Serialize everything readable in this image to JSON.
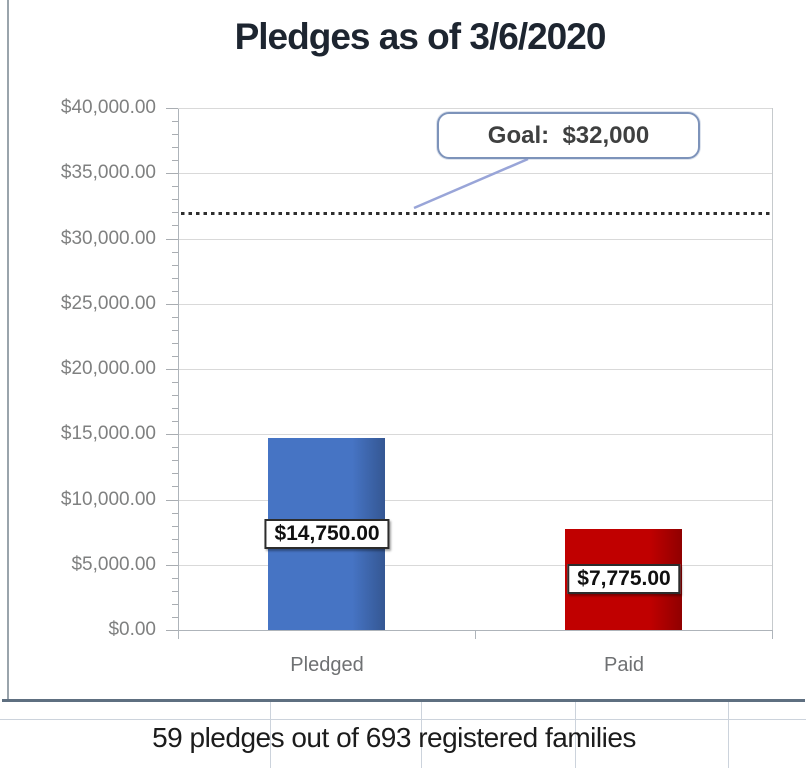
{
  "chart_data": {
    "type": "bar",
    "title": "Pledges as of 3/6/2020",
    "categories": [
      "Pledged",
      "Paid"
    ],
    "values": [
      14750,
      7775
    ],
    "data_labels": [
      "$14,750.00",
      "$7,775.00"
    ],
    "bar_colors": [
      "#4674C4",
      "#C00000"
    ],
    "goal": {
      "value": 32000,
      "label": "Goal:  $32,000"
    },
    "y_axis": {
      "min": 0,
      "max": 40000,
      "major_unit": 5000,
      "minor_unit": 1000,
      "tick_labels": [
        "$0.00",
        "$5,000.00",
        "$10,000.00",
        "$15,000.00",
        "$20,000.00",
        "$25,000.00",
        "$30,000.00",
        "$35,000.00",
        "$40,000.00"
      ]
    },
    "xlabel": "",
    "ylabel": "",
    "grid": true,
    "legend": false,
    "annotation": "59 pledges out of 693 registered families"
  },
  "footer": {
    "text": "59 pledges out of 693 registered families"
  },
  "colors": {
    "pledged_bar": "#4674C4",
    "paid_bar": "#C00000",
    "goal_line": "#2e2e2e",
    "callout_border": "#7d93ba",
    "leader_line": "#99a5d8",
    "gridline": "#d9d9d9",
    "axis_text": "#7f8080",
    "title_text": "#1d2530",
    "sheet_border": "#5e6f80"
  }
}
